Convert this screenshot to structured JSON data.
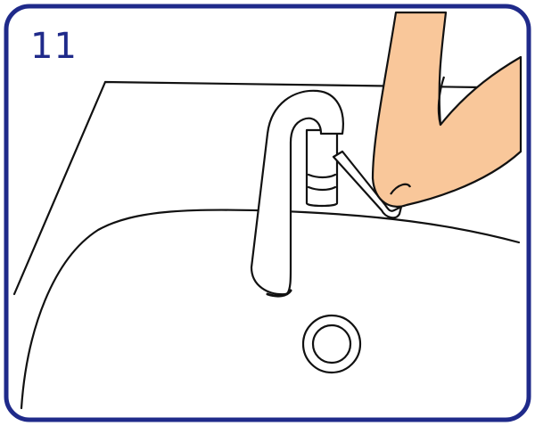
{
  "panel": {
    "step_number": "11"
  },
  "illustration": {
    "subjects": [
      "sink-icon",
      "faucet-icon",
      "drain-icon",
      "hand-icon"
    ]
  },
  "colors": {
    "frame": "#1f2a8a",
    "step_number": "#1f2a8a",
    "line_art": "#111111",
    "skin": "#f9c79a",
    "background": "#ffffff"
  }
}
